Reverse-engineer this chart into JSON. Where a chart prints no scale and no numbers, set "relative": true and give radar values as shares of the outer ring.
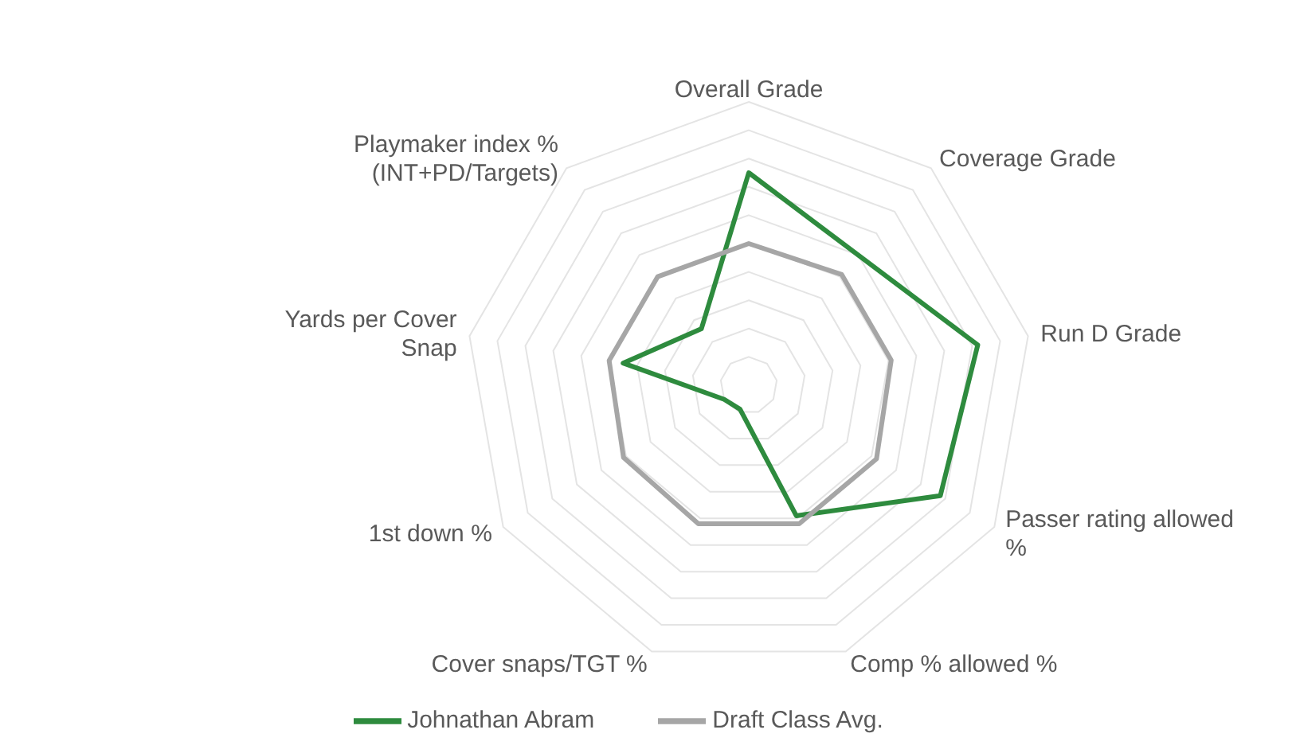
{
  "chart_data": {
    "type": "radar",
    "relative": true,
    "grid": true,
    "legend": "bottom",
    "categories": [
      "Overall Grade",
      "Coverage Grade",
      "Run D Grade",
      "Passer rating allowed\n%",
      "Comp % allowed %",
      "Cover snaps/TGT %",
      "1st down %",
      "Yards per Cover\nSnap",
      "Playmaker index %\n(INT+PD/Targets)"
    ],
    "series": [
      {
        "name": "Johnathan Abram",
        "color": "#2e8b3e",
        "values": [
          0.75,
          0.6,
          0.82,
          0.78,
          0.49,
          0.09,
          0.1,
          0.45,
          0.26
        ]
      },
      {
        "name": "Draft Class Avg.",
        "color": "#a6a6a6",
        "values": [
          0.5,
          0.51,
          0.51,
          0.52,
          0.52,
          0.52,
          0.51,
          0.5,
          0.5
        ]
      }
    ]
  }
}
